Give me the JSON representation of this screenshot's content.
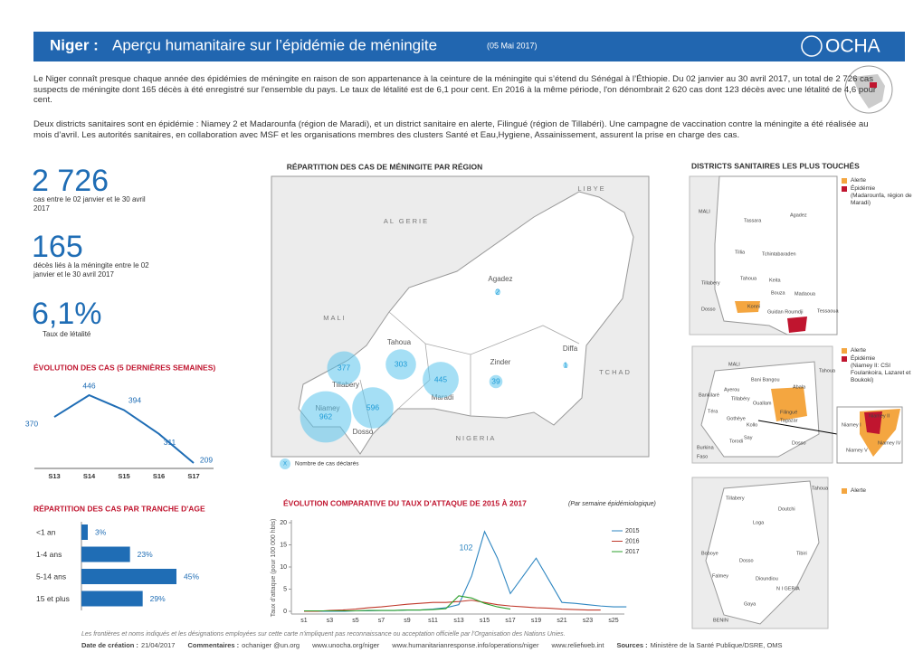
{
  "header": {
    "title": "Niger :",
    "subtitle": "Aperçu humanitaire sur l’épidémie de méningite",
    "date": "(05 Mai 2017)",
    "logo": "OCHA"
  },
  "intro": [
    "Le Niger connaît presque chaque année des épidémies de méningite en raison de son appartenance à la ceinture de la méningite qui s’étend du Sénégal à l’Éthiopie. Du 02 janvier au 30 avril 2017, un  total de 2 726 cas suspects de méningite dont 165 décès à été enregistré sur l'ensemble du pays. Le taux de létalité est de 6,1 pour cent. En 2016 à la même période, l'on dénombrait 2 620 cas dont 123 décès avec une létalité de 4,6 pour cent.",
    "Deux districts sanitaires sont en épidémie :  Niamey 2 et Madarounfa (région de Maradi), et un  district sanitaire en alerte,  Filingué (région de Tillabéri). Une campagne de vaccination contre la méningite a été réalisée au mois d’avril. Les autorités sanitaires, en collaboration avec MSF et les organisations membres des clusters Santé et Eau,Hygiene, Assainissement, assurent la prise en charge des cas."
  ],
  "key_figures": [
    {
      "value": "2 726",
      "label": "cas entre le 02 janvier et le 30 avril 2017"
    },
    {
      "value": "165",
      "label": "décès liés à la méningite entre le 02 janvier et le 30 avril 2017"
    },
    {
      "value": "6,1%",
      "label": "Taux de létalité"
    }
  ],
  "chart_data": [
    {
      "type": "line",
      "title": "ÉVOLUTION DES CAS (5 DERNIÈRES SEMAINES)",
      "categories": [
        "S13",
        "S14",
        "S15",
        "S16",
        "S17"
      ],
      "values": [
        370,
        446,
        394,
        311,
        209
      ],
      "color": "#1f6db5"
    },
    {
      "type": "hbar",
      "title": "RÉPARTITION DES CAS PAR TRANCHE D'AGE",
      "categories": [
        "<1 an",
        "1-4 ans",
        "5-14 ans",
        "15 et plus"
      ],
      "values": [
        3,
        23,
        45,
        29
      ],
      "value_labels": [
        "3%",
        "23%",
        "45%",
        "29%"
      ],
      "color": "#1f6db5"
    },
    {
      "type": "line",
      "title": "ÉVOLUTION COMPARATIVE DU TAUX D’ATTAQUE DE 2015 À 2017",
      "subtitle": "(Par semaine épidémiologique)",
      "y_label": "Taux d’attaque (pour 100 000 hbts)",
      "categories": [
        "s1",
        null,
        "s3",
        null,
        "s5",
        null,
        "s7",
        null,
        "s9",
        null,
        "s11",
        null,
        "s13",
        null,
        "s15",
        null,
        "s17",
        null,
        "s19",
        null,
        "s21",
        null,
        "s23",
        null,
        "s25",
        null
      ],
      "ylim": [
        0,
        20
      ],
      "yticks": [
        0,
        5,
        10,
        15,
        20
      ],
      "series": [
        {
          "name": "2015",
          "color": "#2e86c1",
          "values": [
            0,
            0,
            0,
            0,
            0.1,
            0.1,
            0.2,
            0.2,
            0.3,
            0.3,
            0.5,
            0.8,
            1.5,
            8,
            18,
            12,
            4,
            8,
            12,
            7,
            2,
            1.8,
            1.5,
            1.2,
            1,
            1
          ]
        },
        {
          "name": "2016",
          "color": "#c0392b",
          "values": [
            0,
            0,
            0.2,
            0.3,
            0.5,
            0.8,
            1,
            1.3,
            1.6,
            1.8,
            2,
            2,
            2.2,
            2.5,
            2,
            1.5,
            1.2,
            1,
            0.8,
            0.7,
            0.5,
            0.4,
            0.3,
            0.3,
            null,
            null
          ]
        },
        {
          "name": "2017",
          "color": "#2ca02c",
          "values": [
            0.1,
            0.1,
            0.1,
            0.1,
            0.1,
            0.2,
            0.2,
            0.2,
            0.3,
            0.3,
            0.4,
            0.6,
            3.5,
            3,
            1.8,
            1,
            0.5,
            null,
            null,
            null,
            null,
            null,
            null,
            null,
            null,
            null
          ]
        }
      ],
      "annotation": "102",
      "legend": "right"
    }
  ],
  "map": {
    "title": "RÉPARTITION DES CAS DE MÉNINGITE PAR RÉGION",
    "countries": [
      "LIBYE",
      "AL GERIE",
      "MALI",
      "TCHAD",
      "NIGERIA"
    ],
    "regions": [
      {
        "name": "Agadez",
        "cases": 2
      },
      {
        "name": "Tahoua",
        "cases": 303
      },
      {
        "name": "Tillabery",
        "cases": 377
      },
      {
        "name": "Maradi",
        "cases": 445
      },
      {
        "name": "Zinder",
        "cases": 39
      },
      {
        "name": "Diffa",
        "cases": 1
      },
      {
        "name": "Dosso",
        "cases": 596
      },
      {
        "name": "Niamey",
        "cases": 962
      }
    ],
    "legend": {
      "symbol": "X",
      "label": "Nombre de cas déclarés"
    }
  },
  "districts": {
    "title": "DISTRICTS SANITAIRES LES PLUS TOUCHÉS",
    "maps": [
      {
        "legend": [
          {
            "label": "Alerte",
            "color": "#f4a640"
          },
          {
            "label": "Épidémie",
            "color": "#c0152f"
          }
        ],
        "note": "(Madarounfa, région de Maradi)",
        "places": [
          "MALI",
          "Agadez",
          "Tassara",
          "Tillia",
          "Tchintabaraden",
          "Tahoua",
          "Keita",
          "Bouza",
          "Madaoua",
          "Tillabery",
          "Dosso",
          "Konni",
          "Guidan Roumdji",
          "Tessaoua"
        ]
      },
      {
        "legend": [
          {
            "label": "Alerte",
            "color": "#f4a640"
          },
          {
            "label": "Épidémie",
            "color": "#c0152f"
          }
        ],
        "note": "(Niamey II: CSI Foulankoira, Lazaret et Boukoki)",
        "places": [
          "MALI",
          "Tahoua",
          "Bani Bangou",
          "Abala",
          "Bankilaré",
          "Ayerou",
          "Tillabéry",
          "Ouallam",
          "Filingué",
          "Téra",
          "Gothèye",
          "Kollo",
          "Tagazar",
          "Say",
          "Torodi",
          "Dosso",
          "Burkina",
          "Faso",
          "Niamey I",
          "Niamey II",
          "Niamey IV",
          "Niamey V"
        ]
      },
      {
        "legend": [
          {
            "label": "Alerte",
            "color": "#f4a640"
          }
        ],
        "places": [
          "Tahoua",
          "Tillabery",
          "Doutchi",
          "Loga",
          "Boboye",
          "Tibiri",
          "Dosso",
          "Falmey",
          "Dioundiou",
          "N I GERIA",
          "Gaya",
          "BENIN"
        ]
      }
    ]
  },
  "footer": {
    "disclaimer": "Les frontières et noms indiqués et les désignations employées sur cette carte n'impliquent pas reconnaissance ou acceptation officielle par l'Organisation des Nations Unies.",
    "items": [
      {
        "label": "Date de création :",
        "value": "21/04/2017"
      },
      {
        "label": "Commentaires :",
        "value": "ochaniger @un.org"
      },
      {
        "label": "",
        "value": "www.unocha.org/niger"
      },
      {
        "label": "",
        "value": "www.humanitarianresponse.info/operations/niger"
      },
      {
        "label": "",
        "value": "www.reliefweb.int"
      },
      {
        "label": "Sources :",
        "value": "Ministère de la Santé Publique/DSRE, OMS"
      }
    ]
  }
}
